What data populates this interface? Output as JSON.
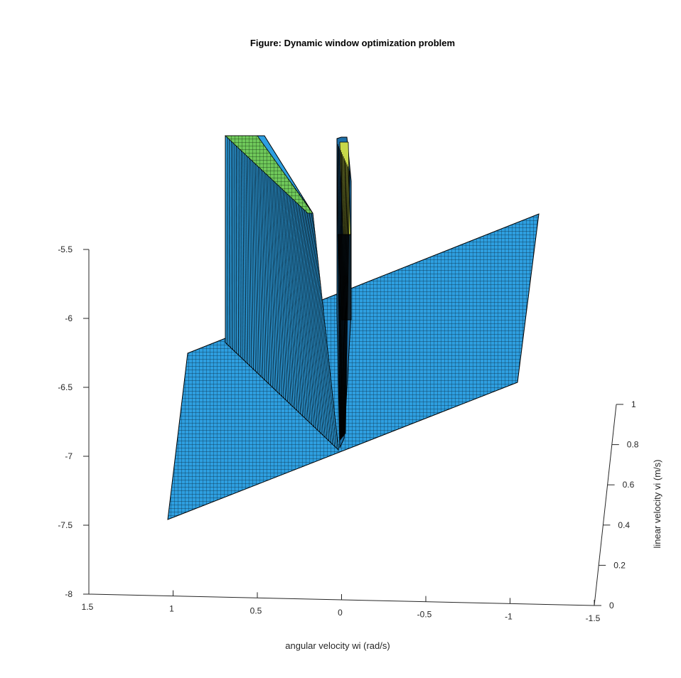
{
  "chart_data": {
    "type": "surface3d",
    "title": "Figure: Dynamic window optimization problem",
    "xlabel": "angular velocity wi (rad/s)",
    "ylabel": "linear velocity vi (m/s)",
    "zlabel": "",
    "xlim": [
      -1.5,
      1.5
    ],
    "ylim": [
      0,
      1
    ],
    "zlim": [
      -8,
      -5.5
    ],
    "x_ticks": [
      "1.5",
      "1",
      "0.5",
      "0",
      "-0.5",
      "-1",
      "-1.5"
    ],
    "y_ticks": [
      "0",
      "0.2",
      "0.4",
      "0.6",
      "0.8",
      "1"
    ],
    "z_ticks": [
      "-5.5",
      "-6",
      "-6.5",
      "-7",
      "-7.5",
      "-8"
    ],
    "surface": {
      "x_range": [
        -1.5,
        1.5
      ],
      "y_range": [
        0,
        1
      ],
      "base_plane": {
        "z_at_x_pos_1_5": -7.5,
        "z_at_x_neg_1_5": -6.5
      },
      "ridges": [
        {
          "x_from": 0.4,
          "x_to": 0.0,
          "z_top": -5.25,
          "note": "wide ridge"
        },
        {
          "x_from": 0.03,
          "x_to": -0.03,
          "z_top": -5.25,
          "note": "narrow spike"
        }
      ]
    },
    "colors": {
      "surface": "#2e9fe0",
      "surface_dark": "#1d7fc0",
      "ridge_top": "#7fcf4f",
      "ridge_top_yellow": "#c8d84a",
      "edge": "#000000"
    },
    "grid": false,
    "legend": "none"
  }
}
